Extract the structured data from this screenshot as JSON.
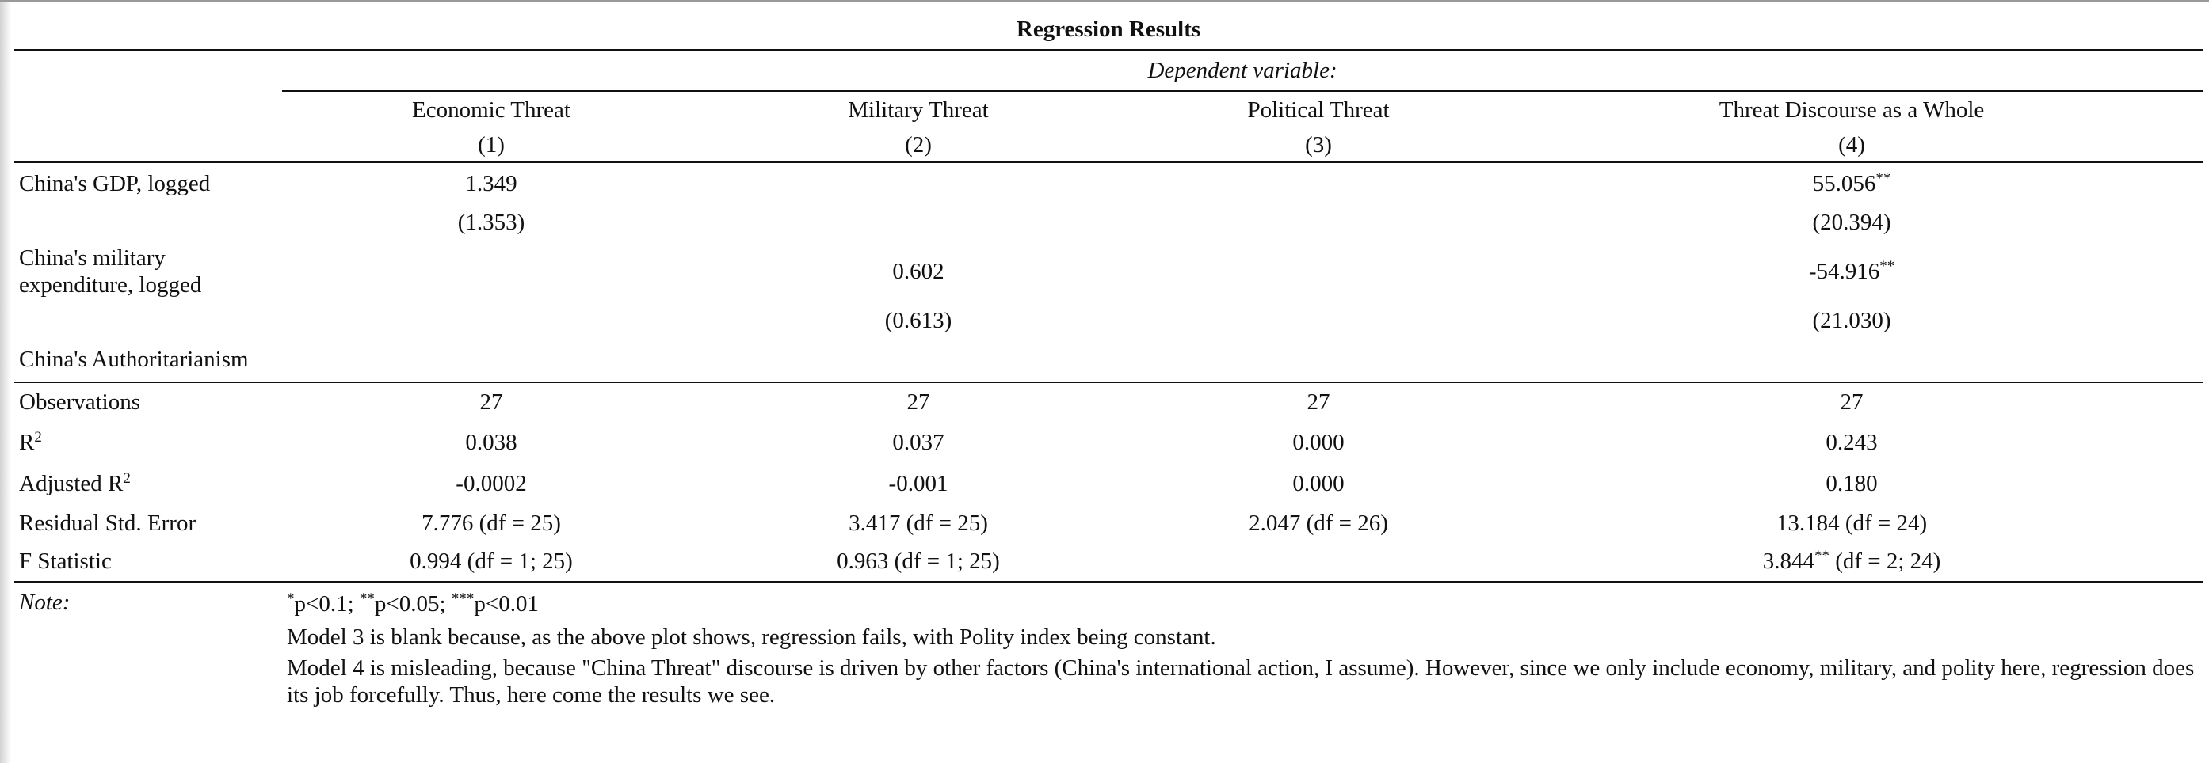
{
  "table": {
    "title": "Regression Results",
    "dependent_label": "Dependent variable:",
    "columns": [
      {
        "name": "Economic Threat",
        "num": "(1)"
      },
      {
        "name": "Military Threat",
        "num": "(2)"
      },
      {
        "name": "Political Threat",
        "num": "(3)"
      },
      {
        "name": "Threat Discourse as a Whole",
        "num": "(4)"
      }
    ],
    "coef_rows": [
      {
        "label": "China's GDP, logged",
        "est": [
          "1.349",
          "",
          "",
          "55.056"
        ],
        "stars": [
          "",
          "",
          "",
          "**"
        ],
        "se": [
          "(1.353)",
          "",
          "",
          "(20.394)"
        ]
      },
      {
        "label1": "China's military",
        "label2": "expenditure, logged",
        "est": [
          "",
          "0.602",
          "",
          "-54.916"
        ],
        "stars": [
          "",
          "",
          "",
          "**"
        ],
        "se": [
          "",
          "(0.613)",
          "",
          "(21.030)"
        ]
      },
      {
        "label": "China's Authoritarianism"
      }
    ],
    "stats": {
      "observations": {
        "label": "Observations",
        "values": [
          "27",
          "27",
          "27",
          "27"
        ]
      },
      "r2": {
        "label": "R",
        "sup": "2",
        "values": [
          "0.038",
          "0.037",
          "0.000",
          "0.243"
        ]
      },
      "adj_r2": {
        "label": "Adjusted R",
        "sup": "2",
        "values": [
          "-0.0002",
          "-0.001",
          "0.000",
          "0.180"
        ]
      },
      "rse": {
        "label": "Residual Std. Error",
        "values": [
          "7.776 (df = 25)",
          "3.417 (df = 25)",
          "2.047 (df = 26)",
          "13.184 (df = 24)"
        ]
      },
      "f": {
        "label": "F Statistic",
        "values": [
          "0.994 (df = 1; 25)",
          "0.963 (df = 1; 25)",
          "",
          "3.844"
        ],
        "stars4": "**",
        "suffix4": " (df = 2; 24)"
      }
    },
    "note": {
      "label": "Note:",
      "sig": [
        {
          "star": "*",
          "text": "p<0.1; "
        },
        {
          "star": "**",
          "text": "p<0.05; "
        },
        {
          "star": "***",
          "text": "p<0.01"
        }
      ],
      "line2": "Model 3 is blank because, as the above plot shows, regression fails, with Polity index being constant.",
      "line3": "Model 4 is misleading, because \"China Threat\" discourse is driven by other factors (China's international action, I assume). However, since we only include economy, military, and polity here, regression does its job forcefully. Thus, here come the results we see."
    }
  }
}
